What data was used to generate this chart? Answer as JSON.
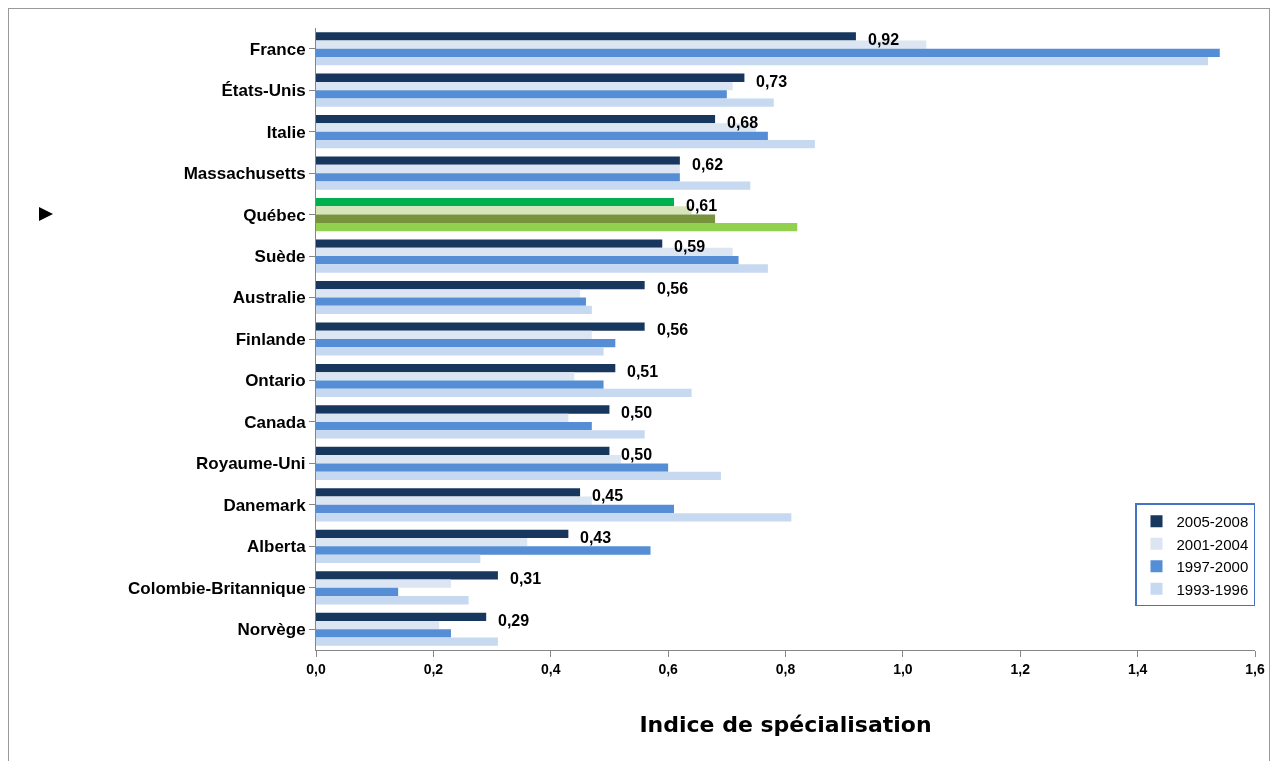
{
  "chart_data": {
    "type": "bar",
    "orientation": "horizontal",
    "xlabel": "Indice de spécialisation",
    "categories": [
      "France",
      "États-Unis",
      "Italie",
      "Massachusetts",
      "Québec",
      "Suède",
      "Australie",
      "Finlande",
      "Ontario",
      "Canada",
      "Royaume-Uni",
      "Danemark",
      "Alberta",
      "Colombie-Britannique",
      "Norvège"
    ],
    "series": [
      {
        "name": "2005-2008",
        "color": "#17375e",
        "colors": [
          "#17375e",
          "#17375e",
          "#17375e",
          "#17375e",
          "#00b050",
          "#17375e",
          "#17375e",
          "#17375e",
          "#17375e",
          "#17375e",
          "#17375e",
          "#17375e",
          "#17375e",
          "#17375e",
          "#17375e"
        ],
        "values": [
          0.92,
          0.73,
          0.68,
          0.62,
          0.61,
          0.59,
          0.56,
          0.56,
          0.51,
          0.5,
          0.5,
          0.45,
          0.43,
          0.31,
          0.29
        ],
        "value_labels": [
          "0,92",
          "0,73",
          "0,68",
          "0,62",
          "0,61",
          "0,59",
          "0,56",
          "0,56",
          "0,51",
          "0,50",
          "0,50",
          "0,45",
          "0,43",
          "0,31",
          "0,29"
        ]
      },
      {
        "name": "2001-2004",
        "color": "#dce6f2",
        "colors": [
          "#dce6f2",
          "#dce6f2",
          "#dce6f2",
          "#dce6f2",
          "#d8e4bc",
          "#dce6f2",
          "#dce6f2",
          "#dce6f2",
          "#dce6f2",
          "#dce6f2",
          "#dce6f2",
          "#dce6f2",
          "#dce6f2",
          "#dce6f2",
          "#dce6f2"
        ],
        "values": [
          1.04,
          0.71,
          0.75,
          0.62,
          0.64,
          0.71,
          0.45,
          0.47,
          0.44,
          0.43,
          0.52,
          0.47,
          0.36,
          0.23,
          0.21
        ]
      },
      {
        "name": "1997-2000",
        "color": "#558ed5",
        "colors": [
          "#558ed5",
          "#558ed5",
          "#558ed5",
          "#558ed5",
          "#77933c",
          "#558ed5",
          "#558ed5",
          "#558ed5",
          "#558ed5",
          "#558ed5",
          "#558ed5",
          "#558ed5",
          "#558ed5",
          "#558ed5",
          "#558ed5"
        ],
        "values": [
          1.54,
          0.7,
          0.77,
          0.62,
          0.68,
          0.72,
          0.46,
          0.51,
          0.49,
          0.47,
          0.6,
          0.61,
          0.57,
          0.14,
          0.23
        ]
      },
      {
        "name": "1993-1996",
        "color": "#c6d9f1",
        "colors": [
          "#c6d9f1",
          "#c6d9f1",
          "#c6d9f1",
          "#c6d9f1",
          "#92d050",
          "#c6d9f1",
          "#c6d9f1",
          "#c6d9f1",
          "#c6d9f1",
          "#c6d9f1",
          "#c6d9f1",
          "#c6d9f1",
          "#c6d9f1",
          "#c6d9f1",
          "#c6d9f1"
        ],
        "values": [
          1.52,
          0.78,
          0.85,
          0.74,
          0.82,
          0.77,
          0.47,
          0.49,
          0.64,
          0.56,
          0.69,
          0.81,
          0.28,
          0.26,
          0.31
        ]
      }
    ],
    "xlim": [
      0,
      1.6
    ],
    "xticks": [
      {
        "value": 0,
        "label": "0,0"
      },
      {
        "value": 0.2,
        "label": "0,2"
      },
      {
        "value": 0.4,
        "label": "0,4"
      },
      {
        "value": 0.6,
        "label": "0,6"
      },
      {
        "value": 0.8,
        "label": "0,8"
      },
      {
        "value": 1.0,
        "label": "1,0"
      },
      {
        "value": 1.2,
        "label": "1,2"
      },
      {
        "value": 1.4,
        "label": "1,4"
      },
      {
        "value": 1.6,
        "label": "1,6"
      }
    ],
    "grid": false,
    "legend": "bottom right"
  }
}
